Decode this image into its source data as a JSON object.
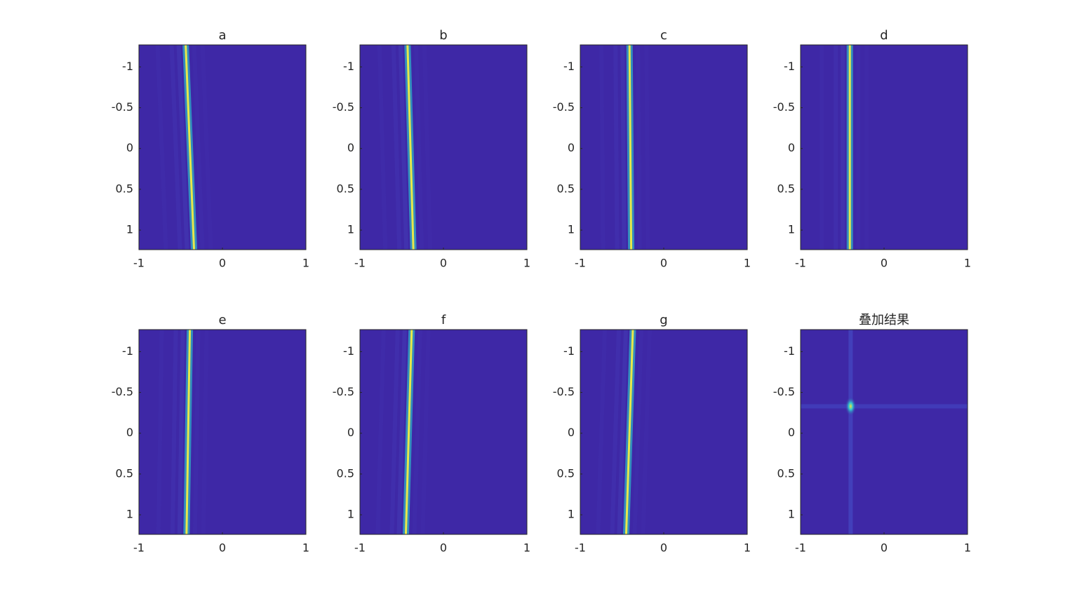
{
  "chart_data": [
    {
      "type": "ridge",
      "title": "a",
      "x": [
        -0.44,
        -0.34
      ],
      "y": [
        -1.27,
        1.24
      ],
      "xlim": [
        -1,
        1
      ],
      "xticks": [
        -1,
        0,
        1
      ],
      "ylim": [
        -1.27,
        1.24
      ],
      "yticks": [
        -1,
        -0.5,
        0,
        0.5,
        1
      ],
      "background": "#3e28a6",
      "color": "#e8e84a"
    },
    {
      "type": "ridge",
      "title": "b",
      "x": [
        -0.43,
        -0.36
      ],
      "y": [
        -1.27,
        1.24
      ],
      "xlim": [
        -1,
        1
      ],
      "xticks": [
        -1,
        0,
        1
      ],
      "ylim": [
        -1.27,
        1.24
      ],
      "yticks": [
        -1,
        -0.5,
        0,
        0.5,
        1
      ],
      "background": "#3e28a6",
      "color": "#e8e84a"
    },
    {
      "type": "ridge",
      "title": "c",
      "x": [
        -0.41,
        -0.39
      ],
      "y": [
        -1.27,
        1.24
      ],
      "xlim": [
        -1,
        1
      ],
      "xticks": [
        -1,
        0,
        1
      ],
      "ylim": [
        -1.27,
        1.24
      ],
      "yticks": [
        -1,
        -0.5,
        0,
        0.5,
        1
      ],
      "background": "#3e28a6",
      "color": "#e8e84a"
    },
    {
      "type": "ridge",
      "title": "d",
      "x": [
        -0.41,
        -0.41
      ],
      "y": [
        -1.27,
        1.24
      ],
      "xlim": [
        -1,
        1
      ],
      "xticks": [
        -1,
        0,
        1
      ],
      "ylim": [
        -1.27,
        1.24
      ],
      "yticks": [
        -1,
        -0.5,
        0,
        0.5,
        1
      ],
      "background": "#3e28a6",
      "color": "#e8e84a"
    },
    {
      "type": "ridge",
      "title": "e",
      "x": [
        -0.39,
        -0.43
      ],
      "y": [
        -1.27,
        1.24
      ],
      "xlim": [
        -1,
        1
      ],
      "xticks": [
        -1,
        0,
        1
      ],
      "ylim": [
        -1.27,
        1.24
      ],
      "yticks": [
        -1,
        -0.5,
        0,
        0.5,
        1
      ],
      "background": "#3e28a6",
      "color": "#e8e84a"
    },
    {
      "type": "ridge",
      "title": "f",
      "x": [
        -0.38,
        -0.45
      ],
      "y": [
        -1.27,
        1.24
      ],
      "xlim": [
        -1,
        1
      ],
      "xticks": [
        -1,
        0,
        1
      ],
      "ylim": [
        -1.27,
        1.24
      ],
      "yticks": [
        -1,
        -0.5,
        0,
        0.5,
        1
      ],
      "background": "#3e28a6",
      "color": "#e8e84a"
    },
    {
      "type": "ridge",
      "title": "g",
      "x": [
        -0.37,
        -0.45
      ],
      "y": [
        -1.27,
        1.24
      ],
      "xlim": [
        -1,
        1
      ],
      "xticks": [
        -1,
        0,
        1
      ],
      "ylim": [
        -1.27,
        1.24
      ],
      "yticks": [
        -1,
        -0.5,
        0,
        0.5,
        1
      ],
      "background": "#3e28a6",
      "color": "#e8e84a"
    },
    {
      "type": "spot",
      "title": "叠加结果",
      "x": [
        -0.4
      ],
      "y": [
        -0.33
      ],
      "xlim": [
        -1,
        1
      ],
      "xticks": [
        -1,
        0,
        1
      ],
      "ylim": [
        -1.27,
        1.24
      ],
      "yticks": [
        -1,
        -0.5,
        0,
        0.5,
        1
      ],
      "background": "#3e28a6",
      "color": "#31c8d0"
    }
  ]
}
